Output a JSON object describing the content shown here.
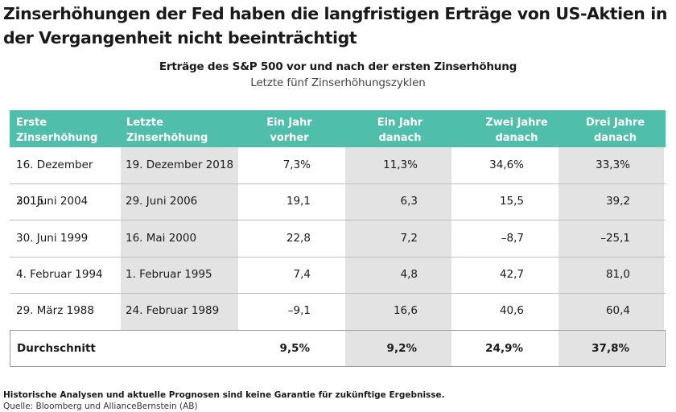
{
  "headline": "Zinserhöhungen der Fed haben die langfristigen Erträge von US-Aktien in der Vergangenheit nicht beeinträchtigt",
  "chart_title": "Erträge des S&P 500 vor und nach der ersten Zinserhöhung",
  "chart_subtitle": "Letzte fünf Zinserhöhungszyklen",
  "colors": {
    "header_bg": "#4fbfab",
    "shade": "#e3e3e3"
  },
  "chart_data": {
    "type": "table",
    "columns": [
      [
        "Erste",
        "Zinserhöhung"
      ],
      [
        "Letzte",
        "Zinserhöhung"
      ],
      [
        "Ein Jahr",
        "vorher"
      ],
      [
        "Ein Jahr",
        "danach"
      ],
      [
        "Zwei Jahre",
        "danach"
      ],
      [
        "Drei Jahre",
        "danach"
      ]
    ],
    "rows": [
      [
        "16. Dezember 2015",
        "19. Dezember 2018",
        "7,3%",
        "11,3%",
        "34,6%",
        "33,3%"
      ],
      [
        "30. Juni 2004",
        "29. Juni 2006",
        "19,1",
        "6,3",
        "15,5",
        "39,2"
      ],
      [
        "30. Juni 1999",
        "16. Mai 2000",
        "22,8",
        "7,2",
        "–8,7",
        "–25,1"
      ],
      [
        "4. Februar 1994",
        "1. Februar 1995",
        "7,4",
        "4,8",
        "42,7",
        "81,0"
      ],
      [
        "29. März 1988",
        "24. Februar 1989",
        "–9,1",
        "16,6",
        "40,6",
        "60,4"
      ]
    ],
    "summary": [
      "Durchschnitt",
      "",
      "9,5%",
      "9,2%",
      "24,9%",
      "37,8%"
    ]
  },
  "footnote": "Historische Analysen und aktuelle Prognosen sind keine Garantie für zukünftige Ergebnisse.",
  "source": "Quelle: Bloomberg und AllianceBernstein (AB)"
}
